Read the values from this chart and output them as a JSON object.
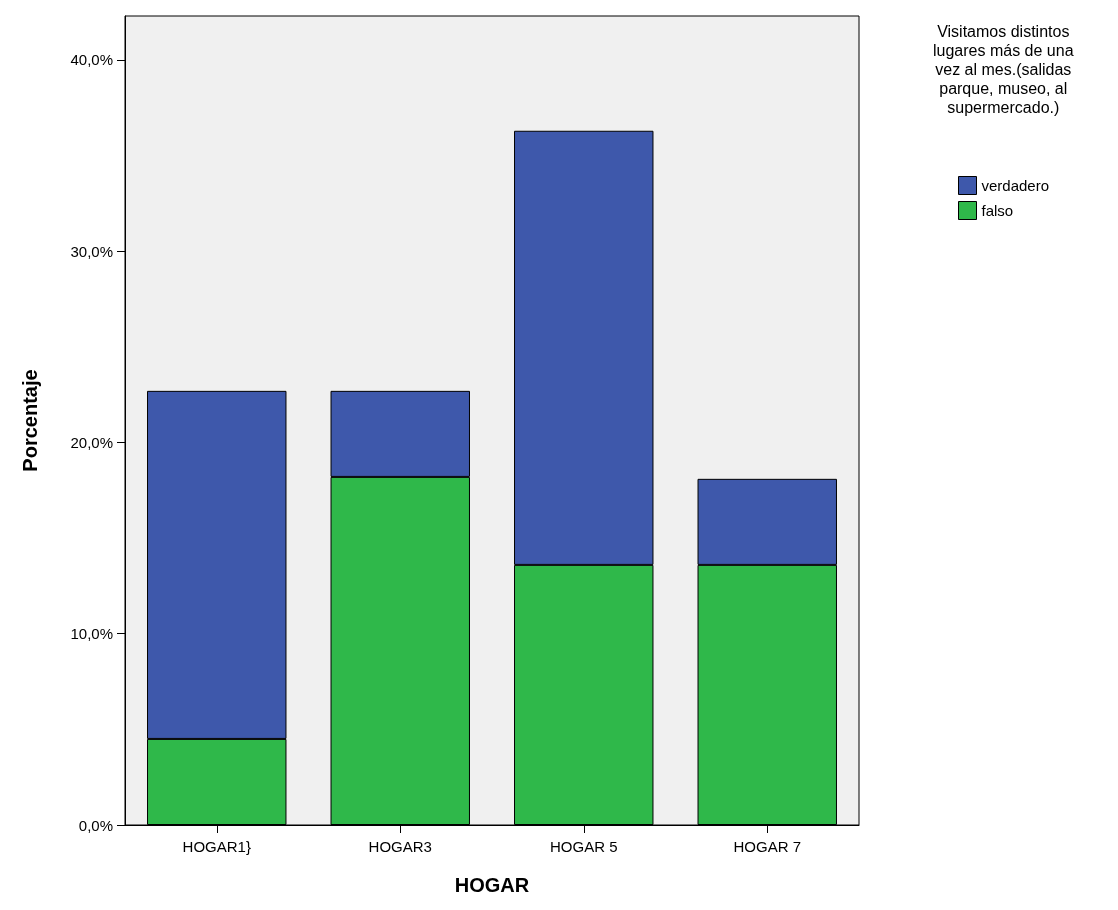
{
  "chart_data": {
    "type": "bar",
    "stacked": true,
    "xlabel": "HOGAR",
    "ylabel": "Porcentaje",
    "legend_title": "Visitamos distintos\nlugares más de una\nvez al mes.(salidas\nparque, museo, al\nsupermercado.)",
    "categories": [
      "HOGAR1}",
      "HOGAR3",
      "HOGAR 5",
      "HOGAR 7"
    ],
    "series": [
      {
        "name": "falso",
        "color": "#2fb84a",
        "values": [
          4.5,
          18.2,
          13.6,
          13.6
        ]
      },
      {
        "name": "verdadero",
        "color": "#3e58ab",
        "values": [
          18.2,
          4.5,
          22.7,
          4.5
        ]
      }
    ],
    "ylim": [
      0,
      42.3
    ],
    "yticks": [
      {
        "value": 0,
        "label": "0,0%"
      },
      {
        "value": 10,
        "label": "10,0%"
      },
      {
        "value": 20,
        "label": "20,0%"
      },
      {
        "value": 30,
        "label": "30,0%"
      },
      {
        "value": 40,
        "label": "40,0%"
      }
    ],
    "grid": false,
    "legend": "top right"
  }
}
